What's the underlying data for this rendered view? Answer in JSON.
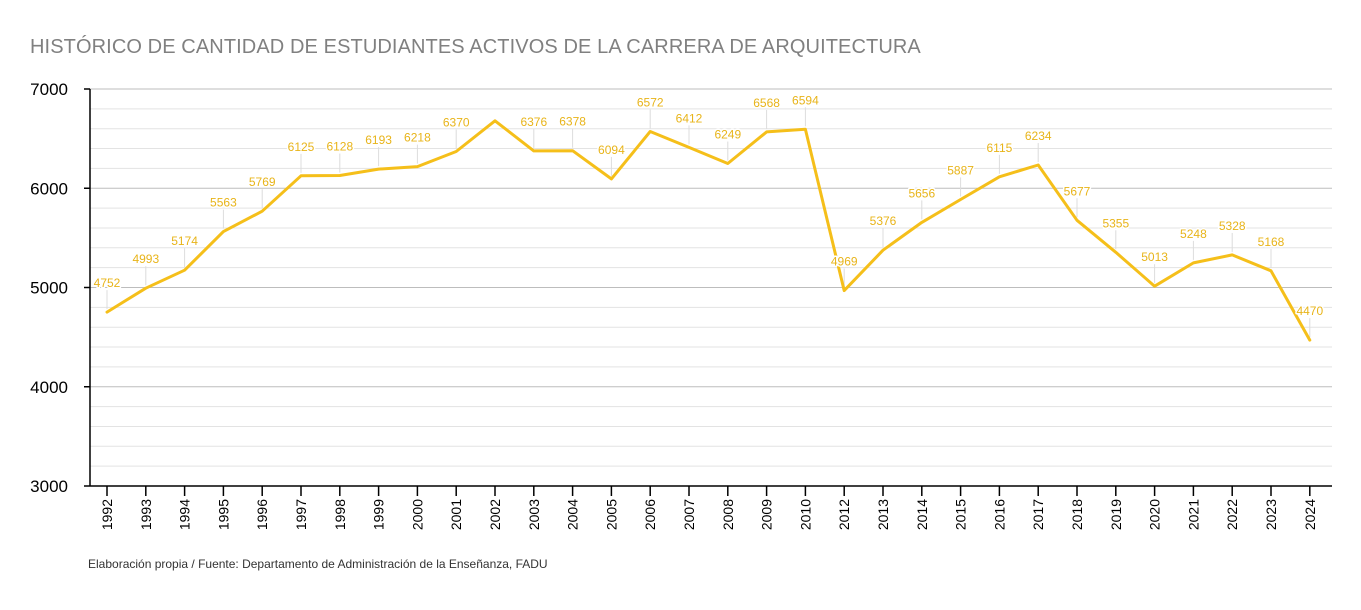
{
  "chart_data": {
    "type": "line",
    "title": "HISTÓRICO DE CANTIDAD DE ESTUDIANTES ACTIVOS DE LA CARRERA DE ARQUITECTURA",
    "source": "Elaboración propia / Fuente: Departamento de Administración de la Enseñanza, FADU",
    "xlabel": "",
    "ylabel": "",
    "ylim": [
      3000,
      7000
    ],
    "yticks": [
      3000,
      4000,
      5000,
      6000,
      7000
    ],
    "grid": true,
    "legend": "none",
    "line_color": "#F5BF1A",
    "label_color": "#E8B419",
    "categories": [
      "1992",
      "1993",
      "1994",
      "1995",
      "1996",
      "1997",
      "1998",
      "1999",
      "2000",
      "2001",
      "2002",
      "2003",
      "2004",
      "2005",
      "2006",
      "2007",
      "2008",
      "2009",
      "2010",
      "2012",
      "2013",
      "2014",
      "2015",
      "2016",
      "2017",
      "2018",
      "2019",
      "2020",
      "2021",
      "2022",
      "2023",
      "2024"
    ],
    "values": [
      4752,
      4993,
      5174,
      5563,
      5769,
      6125,
      6128,
      6193,
      6218,
      6370,
      6680,
      6376,
      6378,
      6094,
      6572,
      6412,
      6249,
      6568,
      6594,
      4969,
      5376,
      5656,
      5887,
      6115,
      6234,
      5677,
      5355,
      5013,
      5248,
      5328,
      5168,
      4470
    ],
    "data_labels": [
      "4752",
      "4993",
      "5174",
      "5563",
      "5769",
      "6125",
      "6128",
      "6193",
      "6218",
      "6370",
      "",
      "6376",
      "6378",
      "6094",
      "6572",
      "6412",
      "6249",
      "6568",
      "6594",
      "4969",
      "5376",
      "5656",
      "5887",
      "6115",
      "6234",
      "5677",
      "5355",
      "5013",
      "5248",
      "5328",
      "5168",
      "4470"
    ]
  }
}
